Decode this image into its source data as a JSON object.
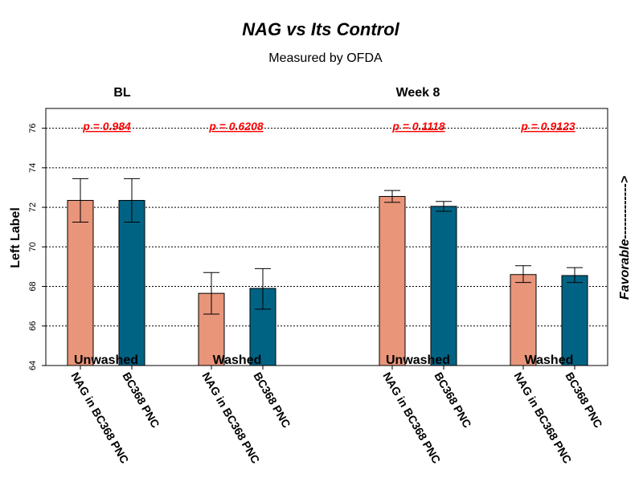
{
  "chart_data": {
    "type": "bar",
    "title": "NAG vs Its Control",
    "subtitle": "Measured by OFDA",
    "ylabel": "Left Label",
    "ylim": [
      64,
      77
    ],
    "yticks": [
      64,
      66,
      68,
      70,
      72,
      74,
      76
    ],
    "grid": "horizontal dotted",
    "right_annotation": "Favorable------------->",
    "colors": {
      "NAG in BC368 PNC": "#e8957a",
      "BC368 PNC": "#006384",
      "pvalue": "#ff0000"
    },
    "panels": [
      {
        "label": "BL",
        "groups": [
          {
            "label": "Unwashed",
            "pvalue": "p = 0.984",
            "bars": [
              {
                "category": "NAG in BC368 PNC",
                "value": 72.35,
                "err_low": 71.25,
                "err_high": 73.45
              },
              {
                "category": "BC368 PNC",
                "value": 72.35,
                "err_low": 71.25,
                "err_high": 73.45
              }
            ]
          },
          {
            "label": "Washed",
            "pvalue": "p = 0.6208",
            "bars": [
              {
                "category": "NAG in BC368 PNC",
                "value": 67.65,
                "err_low": 66.6,
                "err_high": 68.7
              },
              {
                "category": "BC368 PNC",
                "value": 67.9,
                "err_low": 66.85,
                "err_high": 68.9
              }
            ]
          }
        ]
      },
      {
        "label": "Week 8",
        "groups": [
          {
            "label": "Unwashed",
            "pvalue": "p = 0.1118",
            "bars": [
              {
                "category": "NAG in BC368 PNC",
                "value": 72.55,
                "err_low": 72.25,
                "err_high": 72.85
              },
              {
                "category": "BC368 PNC",
                "value": 72.05,
                "err_low": 71.8,
                "err_high": 72.3
              }
            ]
          },
          {
            "label": "Washed",
            "pvalue": "p = 0.9123",
            "bars": [
              {
                "category": "NAG in BC368 PNC",
                "value": 68.6,
                "err_low": 68.2,
                "err_high": 69.05
              },
              {
                "category": "BC368 PNC",
                "value": 68.55,
                "err_low": 68.2,
                "err_high": 68.95
              }
            ]
          }
        ]
      }
    ]
  }
}
